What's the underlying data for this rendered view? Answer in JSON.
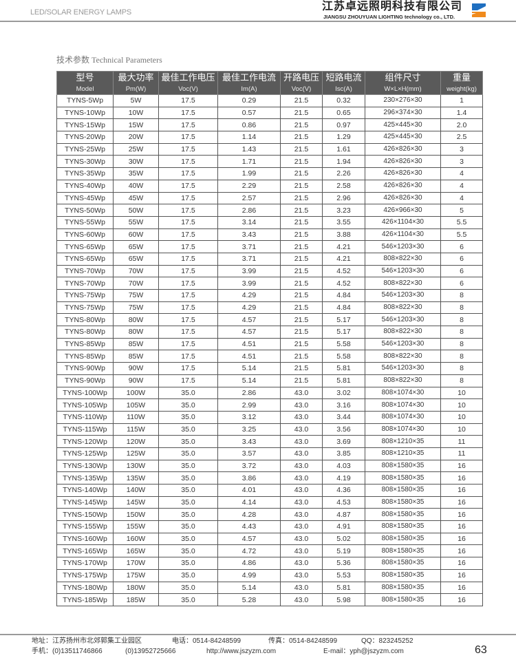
{
  "header": {
    "tagline": "LED/SOLAR ENERGY LAMPS",
    "company_cn": "江苏卓远照明科技有限公司",
    "company_en": "JIANGSU ZHOUYUAN LIGHTING technology co., LTD.",
    "logo_colors": [
      "#1f6fc0",
      "#f08a1c"
    ]
  },
  "section_title": "技术参数 Technical Parameters",
  "table": {
    "columns": [
      {
        "cn": "型号",
        "en": "Model"
      },
      {
        "cn": "最大功率",
        "en": "Pm(W)"
      },
      {
        "cn": "最佳工作电压",
        "en": "Voc(V)"
      },
      {
        "cn": "最佳工作电流",
        "en": "Im(A)"
      },
      {
        "cn": "开路电压",
        "en": "Voc(V)"
      },
      {
        "cn": "短路电流",
        "en": "Isc(A)"
      },
      {
        "cn": "组件尺寸",
        "en": "W×L×H(mm)"
      },
      {
        "cn": "重量",
        "en": "weight(kg)"
      }
    ],
    "rows": [
      [
        "TYNS-5Wp",
        "5W",
        "17.5",
        "0.29",
        "21.5",
        "0.32",
        "230×276×30",
        "1"
      ],
      [
        "TYNS-10Wp",
        "10W",
        "17.5",
        "0.57",
        "21.5",
        "0.65",
        "296×374×30",
        "1.4"
      ],
      [
        "TYNS-15Wp",
        "15W",
        "17.5",
        "0.86",
        "21.5",
        "0.97",
        "425×445×30",
        "2.0"
      ],
      [
        "TYNS-20Wp",
        "20W",
        "17.5",
        "1.14",
        "21.5",
        "1.29",
        "425×445×30",
        "2.5"
      ],
      [
        "TYNS-25Wp",
        "25W",
        "17.5",
        "1.43",
        "21.5",
        "1.61",
        "426×826×30",
        "3"
      ],
      [
        "TYNS-30Wp",
        "30W",
        "17.5",
        "1.71",
        "21.5",
        "1.94",
        "426×826×30",
        "3"
      ],
      [
        "TYNS-35Wp",
        "35W",
        "17.5",
        "1.99",
        "21.5",
        "2.26",
        "426×826×30",
        "4"
      ],
      [
        "TYNS-40Wp",
        "40W",
        "17.5",
        "2.29",
        "21.5",
        "2.58",
        "426×826×30",
        "4"
      ],
      [
        "TYNS-45Wp",
        "45W",
        "17.5",
        "2.57",
        "21.5",
        "2.96",
        "426×826×30",
        "4"
      ],
      [
        "TYNS-50Wp",
        "50W",
        "17.5",
        "2.86",
        "21.5",
        "3.23",
        "426×966×30",
        "5"
      ],
      [
        "TYNS-55Wp",
        "55W",
        "17.5",
        "3.14",
        "21.5",
        "3.55",
        "426×1104×30",
        "5.5"
      ],
      [
        "TYNS-60Wp",
        "60W",
        "17.5",
        "3.43",
        "21.5",
        "3.88",
        "426×1104×30",
        "5.5"
      ],
      [
        "TYNS-65Wp",
        "65W",
        "17.5",
        "3.71",
        "21.5",
        "4.21",
        "546×1203×30",
        "6"
      ],
      [
        "TYNS-65Wp",
        "65W",
        "17.5",
        "3.71",
        "21.5",
        "4.21",
        "808×822×30",
        "6"
      ],
      [
        "TYNS-70Wp",
        "70W",
        "17.5",
        "3.99",
        "21.5",
        "4.52",
        "546×1203×30",
        "6"
      ],
      [
        "TYNS-70Wp",
        "70W",
        "17.5",
        "3.99",
        "21.5",
        "4.52",
        "808×822×30",
        "6"
      ],
      [
        "TYNS-75Wp",
        "75W",
        "17.5",
        "4.29",
        "21.5",
        "4.84",
        "546×1203×30",
        "8"
      ],
      [
        "TYNS-75Wp",
        "75W",
        "17.5",
        "4.29",
        "21.5",
        "4.84",
        "808×822×30",
        "8"
      ],
      [
        "TYNS-80Wp",
        "80W",
        "17.5",
        "4.57",
        "21.5",
        "5.17",
        "546×1203×30",
        "8"
      ],
      [
        "TYNS-80Wp",
        "80W",
        "17.5",
        "4.57",
        "21.5",
        "5.17",
        "808×822×30",
        "8"
      ],
      [
        "TYNS-85Wp",
        "85W",
        "17.5",
        "4.51",
        "21.5",
        "5.58",
        "546×1203×30",
        "8"
      ],
      [
        "TYNS-85Wp",
        "85W",
        "17.5",
        "4.51",
        "21.5",
        "5.58",
        "808×822×30",
        "8"
      ],
      [
        "TYNS-90Wp",
        "90W",
        "17.5",
        "5.14",
        "21.5",
        "5.81",
        "546×1203×30",
        "8"
      ],
      [
        "TYNS-90Wp",
        "90W",
        "17.5",
        "5.14",
        "21.5",
        "5.81",
        "808×822×30",
        "8"
      ],
      [
        "TYNS-100Wp",
        "100W",
        "35.0",
        "2.86",
        "43.0",
        "3.02",
        "808×1074×30",
        "10"
      ],
      [
        "TYNS-105Wp",
        "105W",
        "35.0",
        "2.99",
        "43.0",
        "3.16",
        "808×1074×30",
        "10"
      ],
      [
        "TYNS-110Wp",
        "110W",
        "35.0",
        "3.12",
        "43.0",
        "3.44",
        "808×1074×30",
        "10"
      ],
      [
        "TYNS-115Wp",
        "115W",
        "35.0",
        "3.25",
        "43.0",
        "3.56",
        "808×1074×30",
        "10"
      ],
      [
        "TYNS-120Wp",
        "120W",
        "35.0",
        "3.43",
        "43.0",
        "3.69",
        "808×1210×35",
        "11"
      ],
      [
        "TYNS-125Wp",
        "125W",
        "35.0",
        "3.57",
        "43.0",
        "3.85",
        "808×1210×35",
        "11"
      ],
      [
        "TYNS-130Wp",
        "130W",
        "35.0",
        "3.72",
        "43.0",
        "4.03",
        "808×1580×35",
        "16"
      ],
      [
        "TYNS-135Wp",
        "135W",
        "35.0",
        "3.86",
        "43.0",
        "4.19",
        "808×1580×35",
        "16"
      ],
      [
        "TYNS-140Wp",
        "140W",
        "35.0",
        "4.01",
        "43.0",
        "4.36",
        "808×1580×35",
        "16"
      ],
      [
        "TYNS-145Wp",
        "145W",
        "35.0",
        "4.14",
        "43.0",
        "4.53",
        "808×1580×35",
        "16"
      ],
      [
        "TYNS-150Wp",
        "150W",
        "35.0",
        "4.28",
        "43.0",
        "4.87",
        "808×1580×35",
        "16"
      ],
      [
        "TYNS-155Wp",
        "155W",
        "35.0",
        "4.43",
        "43.0",
        "4.91",
        "808×1580×35",
        "16"
      ],
      [
        "TYNS-160Wp",
        "160W",
        "35.0",
        "4.57",
        "43.0",
        "5.02",
        "808×1580×35",
        "16"
      ],
      [
        "TYNS-165Wp",
        "165W",
        "35.0",
        "4.72",
        "43.0",
        "5.19",
        "808×1580×35",
        "16"
      ],
      [
        "TYNS-170Wp",
        "170W",
        "35.0",
        "4.86",
        "43.0",
        "5.36",
        "808×1580×35",
        "16"
      ],
      [
        "TYNS-175Wp",
        "175W",
        "35.0",
        "4.99",
        "43.0",
        "5.53",
        "808×1580×35",
        "16"
      ],
      [
        "TYNS-180Wp",
        "180W",
        "35.0",
        "5.14",
        "43.0",
        "5.81",
        "808×1580×35",
        "16"
      ],
      [
        "TYNS-185Wp",
        "185W",
        "35.0",
        "5.28",
        "43.0",
        "5.98",
        "808×1580×35",
        "16"
      ]
    ]
  },
  "footer": {
    "address": "地址：江苏扬州市北郊郭集工业园区",
    "phone": "电话：0514-84248599",
    "fax": "传真：0514-84248599",
    "qq": "QQ：823245252",
    "mobile": "手机：(0)13511746866",
    "mobile2": "(0)13952725666",
    "website": "http://www.jszyzm.com",
    "email": "E-mail：yph@jszyzm.com",
    "page_number": "63"
  }
}
